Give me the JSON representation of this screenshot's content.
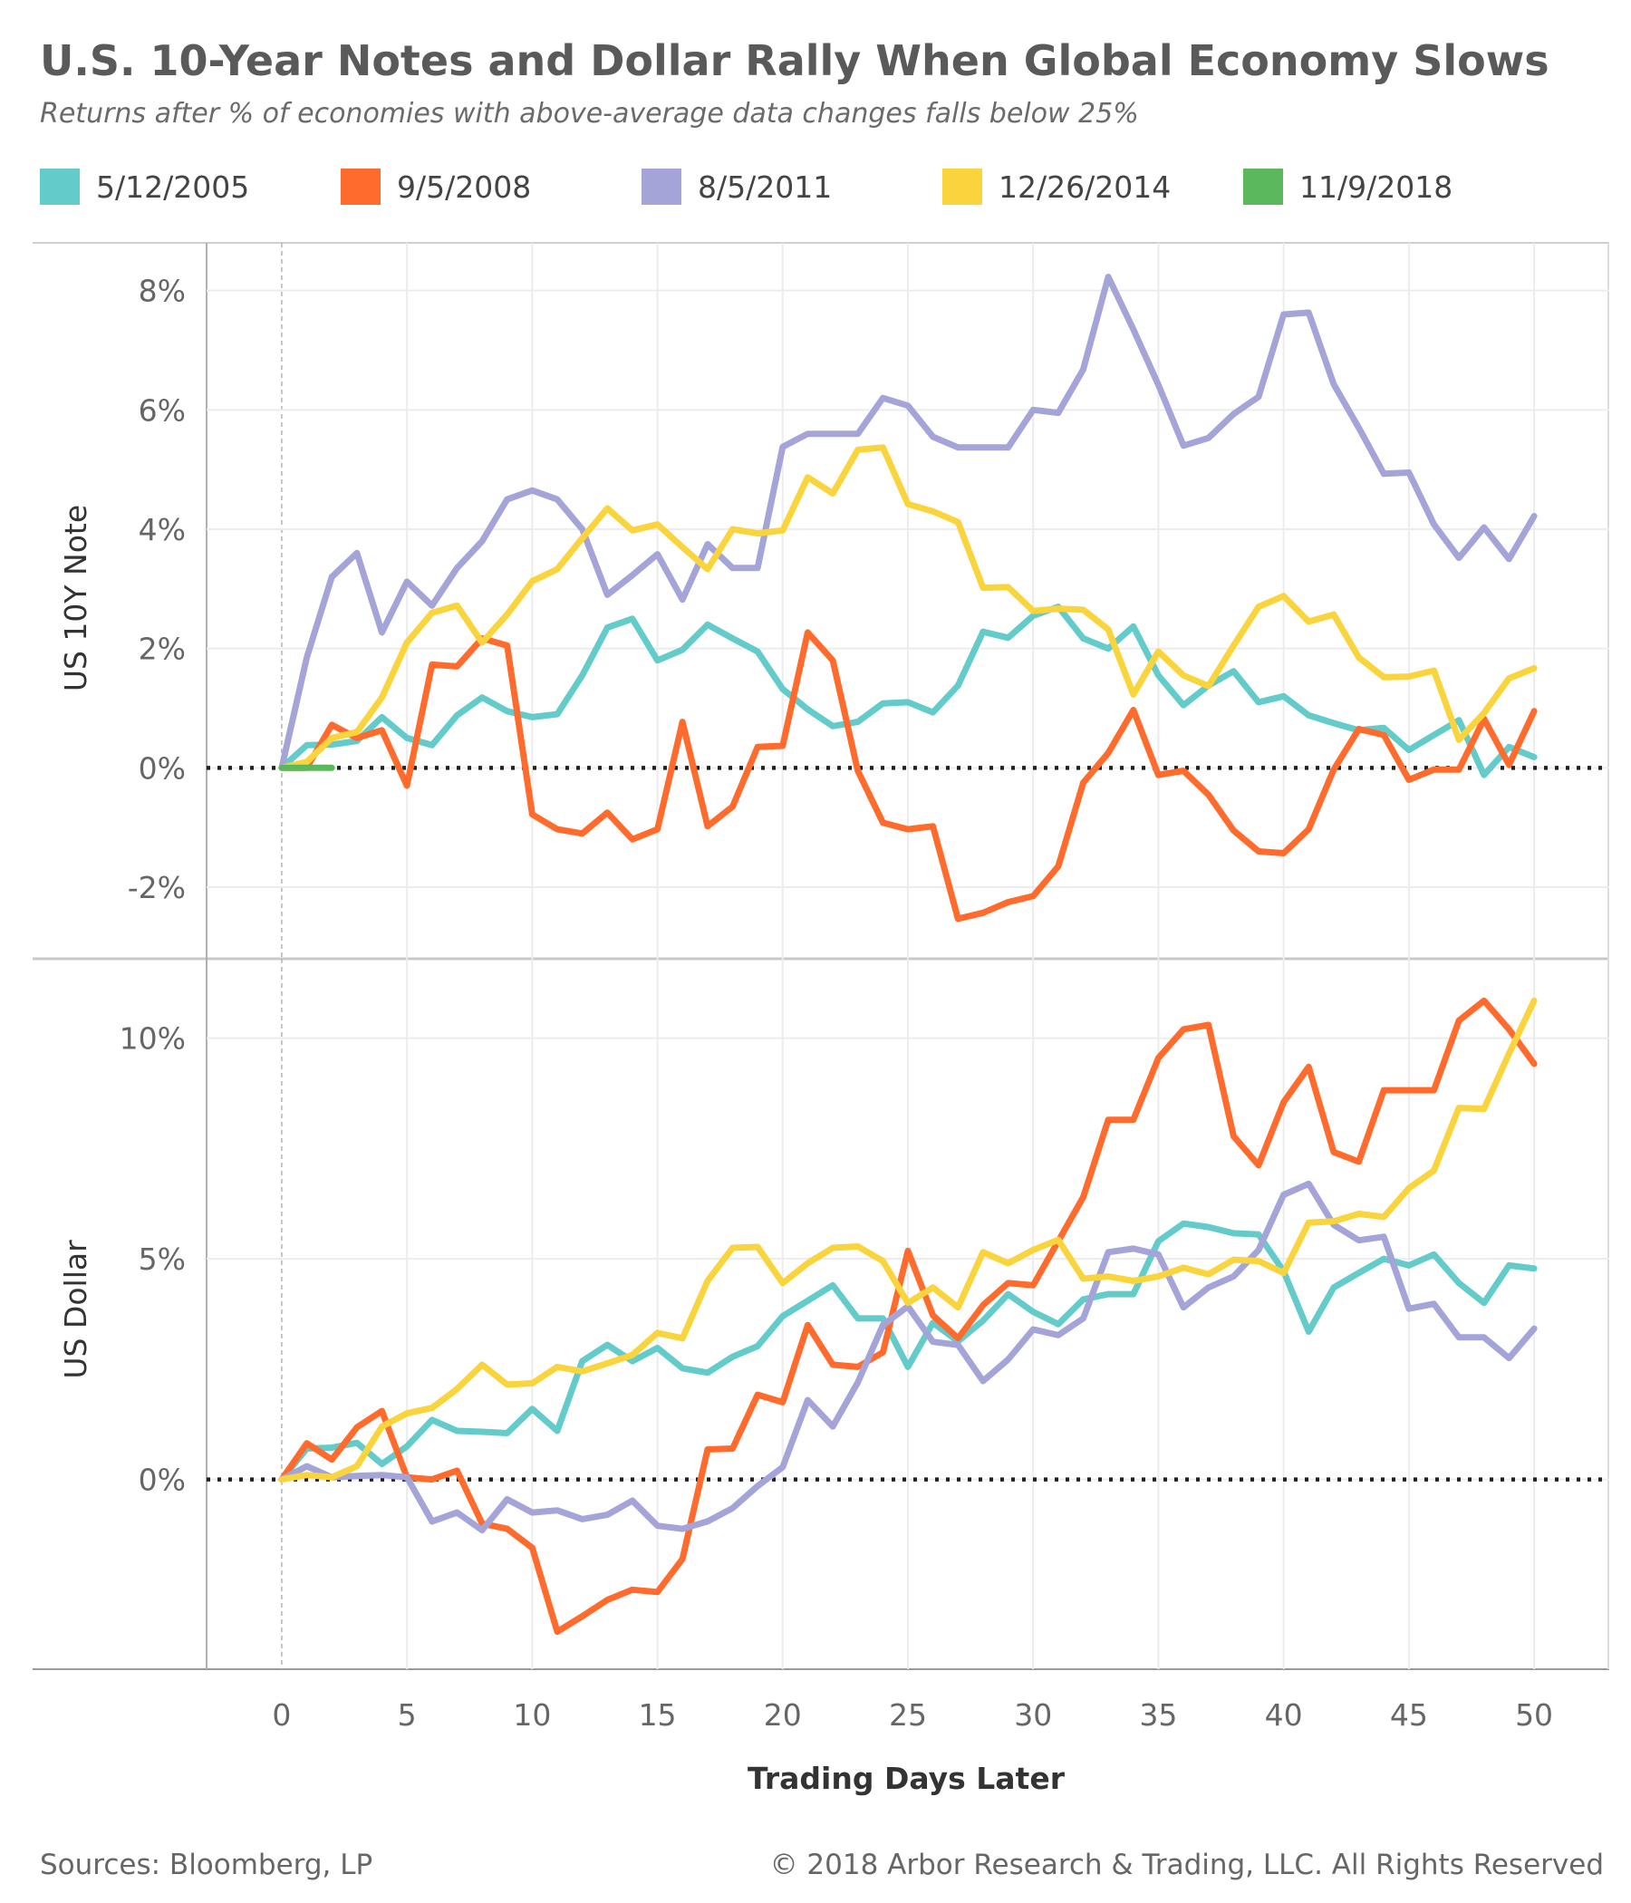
{
  "title": "U.S. 10-Year Notes and Dollar Rally When Global Economy Slows",
  "subtitle": "Returns after % of economies with above-average data changes falls below 25%",
  "legend": [
    {
      "label": "5/12/2005",
      "color": "#63CCCA"
    },
    {
      "label": "9/5/2008",
      "color": "#FF6B2D"
    },
    {
      "label": "8/5/2011",
      "color": "#A5A4D8"
    },
    {
      "label": "12/26/2014",
      "color": "#F9D43C"
    },
    {
      "label": "11/9/2018",
      "color": "#5CB85C"
    }
  ],
  "footer": {
    "source": "Sources: Bloomberg, LP",
    "copyright": "© 2018 Arbor Research & Trading, LLC. All Rights Reserved"
  },
  "chart_data": {
    "type": "line",
    "xlabel": "Trading Days Later",
    "x_ticks": [
      0,
      5,
      10,
      15,
      20,
      25,
      30,
      35,
      40,
      45,
      50
    ],
    "xlim": [
      -3,
      53
    ],
    "grid": true,
    "legend_position": "top",
    "panels": [
      {
        "ylabel": "US 10Y Note",
        "ylim": [
          -3.2,
          8.8
        ],
        "y_ticks": [
          8,
          6,
          4,
          2,
          0,
          -2
        ],
        "y_tick_labels": [
          "8%",
          "6%",
          "4%",
          "2%",
          "0%",
          "-2%"
        ],
        "zero_line": true,
        "series": [
          {
            "name": "5/12/2005",
            "values": [
              0.0,
              0.38,
              0.39,
              0.45,
              0.85,
              0.5,
              0.38,
              0.88,
              1.18,
              0.95,
              0.85,
              0.9,
              1.55,
              2.35,
              2.5,
              1.8,
              1.98,
              2.4,
              2.17,
              1.95,
              1.32,
              0.98,
              0.7,
              0.77,
              1.08,
              1.1,
              0.93,
              1.38,
              2.28,
              2.18,
              2.55,
              2.7,
              2.17,
              2.0,
              2.37,
              1.55,
              1.05,
              1.38,
              1.62,
              1.1,
              1.2,
              0.88,
              0.75,
              0.63,
              0.67,
              0.3,
              0.55,
              0.8,
              -0.12,
              0.35,
              0.18
            ]
          },
          {
            "name": "9/5/2008",
            "values": [
              0.0,
              0.0,
              0.72,
              0.5,
              0.63,
              -0.3,
              1.73,
              1.7,
              2.17,
              2.05,
              -0.78,
              -1.03,
              -1.1,
              -0.75,
              -1.2,
              -1.03,
              0.77,
              -0.98,
              -0.65,
              0.35,
              0.37,
              2.27,
              1.8,
              -0.05,
              -0.92,
              -1.03,
              -0.98,
              -2.53,
              -2.43,
              -2.25,
              -2.15,
              -1.65,
              -0.25,
              0.25,
              0.97,
              -0.12,
              -0.05,
              -0.45,
              -1.05,
              -1.4,
              -1.43,
              -1.03,
              -0.03,
              0.65,
              0.55,
              -0.2,
              -0.03,
              -0.03,
              0.82,
              0.05,
              0.95
            ]
          },
          {
            "name": "8/5/2011",
            "values": [
              0.0,
              1.85,
              3.2,
              3.6,
              2.27,
              3.12,
              2.72,
              3.35,
              3.8,
              4.5,
              4.65,
              4.5,
              4.0,
              2.9,
              3.23,
              3.58,
              2.82,
              3.75,
              3.35,
              3.35,
              5.38,
              5.6,
              5.6,
              5.6,
              6.2,
              6.07,
              5.55,
              5.37,
              5.37,
              5.37,
              6.0,
              5.95,
              6.68,
              8.23,
              7.35,
              6.42,
              5.4,
              5.53,
              5.93,
              6.22,
              7.6,
              7.63,
              6.43,
              5.7,
              4.93,
              4.95,
              4.08,
              3.52,
              4.03,
              3.5,
              4.22
            ]
          },
          {
            "name": "12/26/2014",
            "values": [
              0.0,
              0.1,
              0.5,
              0.6,
              1.18,
              2.1,
              2.6,
              2.72,
              2.1,
              2.57,
              3.13,
              3.33,
              3.85,
              4.35,
              3.98,
              4.08,
              3.7,
              3.33,
              4.0,
              3.93,
              3.98,
              4.87,
              4.6,
              5.33,
              5.37,
              4.42,
              4.3,
              4.12,
              3.02,
              3.03,
              2.63,
              2.67,
              2.65,
              2.32,
              1.23,
              1.95,
              1.55,
              1.37,
              2.05,
              2.7,
              2.88,
              2.45,
              2.57,
              1.85,
              1.52,
              1.53,
              1.63,
              0.47,
              0.92,
              1.5,
              1.67
            ]
          },
          {
            "name": "11/9/2018",
            "values": [
              0.0,
              0.0,
              0.0
            ]
          }
        ]
      },
      {
        "ylabel": "US Dollar",
        "ylim": [
          -4.3,
          11.8
        ],
        "y_ticks": [
          10,
          5,
          0
        ],
        "y_tick_labels": [
          "10%",
          "5%",
          "0%"
        ],
        "zero_line": true,
        "series": [
          {
            "name": "5/12/2005",
            "values": [
              0.0,
              0.7,
              0.72,
              0.83,
              0.35,
              0.75,
              1.35,
              1.1,
              1.08,
              1.05,
              1.6,
              1.1,
              2.68,
              3.05,
              2.68,
              2.98,
              2.52,
              2.42,
              2.78,
              3.02,
              3.7,
              4.05,
              4.4,
              3.65,
              3.65,
              2.55,
              3.55,
              3.13,
              3.6,
              4.2,
              3.8,
              3.52,
              4.08,
              4.2,
              4.2,
              5.4,
              5.8,
              5.72,
              5.58,
              5.55,
              4.72,
              3.35,
              4.35,
              4.68,
              5.0,
              4.85,
              5.1,
              4.45,
              4.0,
              4.85,
              4.78
            ]
          },
          {
            "name": "9/5/2008",
            "values": [
              0.0,
              0.82,
              0.45,
              1.18,
              1.55,
              0.05,
              0.0,
              0.2,
              -1.0,
              -1.12,
              -1.55,
              -3.45,
              -3.1,
              -2.73,
              -2.5,
              -2.55,
              -1.8,
              0.68,
              0.7,
              1.92,
              1.75,
              3.5,
              2.6,
              2.55,
              2.88,
              5.18,
              3.72,
              3.2,
              3.95,
              4.45,
              4.4,
              5.4,
              6.4,
              8.15,
              8.15,
              9.55,
              10.2,
              10.3,
              7.78,
              7.12,
              8.55,
              9.35,
              7.42,
              7.2,
              8.82,
              8.82,
              8.82,
              10.4,
              10.85,
              10.2,
              9.42
            ]
          },
          {
            "name": "8/5/2011",
            "values": [
              0.0,
              0.3,
              0.05,
              0.08,
              0.1,
              0.05,
              -0.95,
              -0.75,
              -1.15,
              -0.45,
              -0.75,
              -0.7,
              -0.9,
              -0.8,
              -0.48,
              -1.05,
              -1.12,
              -0.95,
              -0.65,
              -0.15,
              0.28,
              1.8,
              1.2,
              2.2,
              3.5,
              3.92,
              3.12,
              3.05,
              2.23,
              2.72,
              3.4,
              3.27,
              3.65,
              5.15,
              5.23,
              5.1,
              3.9,
              4.35,
              4.6,
              5.2,
              6.45,
              6.7,
              5.77,
              5.42,
              5.5,
              3.87,
              3.98,
              3.22,
              3.22,
              2.75,
              3.42
            ]
          },
          {
            "name": "12/26/2014",
            "values": [
              0.0,
              0.1,
              0.05,
              0.3,
              1.2,
              1.5,
              1.62,
              2.05,
              2.6,
              2.15,
              2.18,
              2.55,
              2.45,
              2.63,
              2.82,
              3.32,
              3.2,
              4.5,
              5.25,
              5.27,
              4.45,
              4.9,
              5.25,
              5.28,
              4.95,
              4.0,
              4.35,
              3.9,
              5.15,
              4.9,
              5.2,
              5.43,
              4.55,
              4.6,
              4.5,
              4.6,
              4.8,
              4.65,
              4.98,
              4.95,
              4.68,
              5.82,
              5.85,
              6.02,
              5.95,
              6.6,
              7.0,
              8.42,
              8.4,
              9.65,
              10.85
            ]
          },
          {
            "name": "11/9/2018",
            "values": []
          }
        ]
      }
    ]
  }
}
